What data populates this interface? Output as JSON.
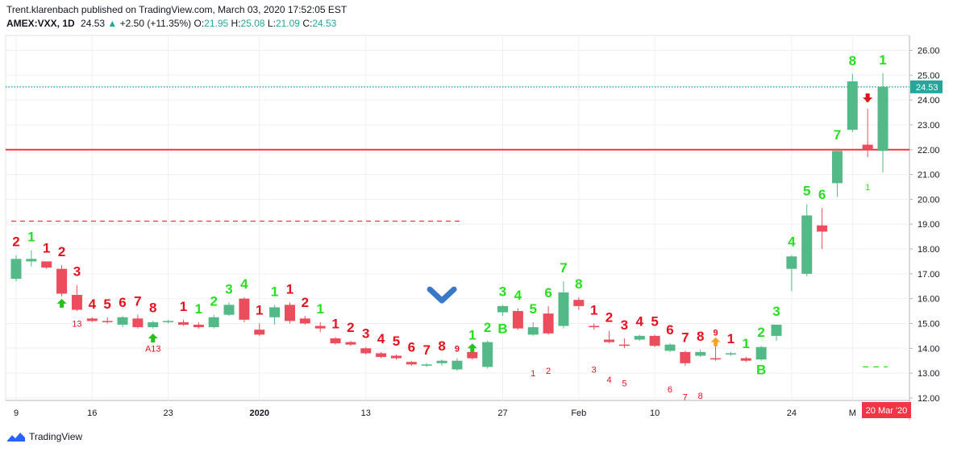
{
  "header": {
    "publisher_line": "Trent.klarenbach published on TradingView.com, March 03, 2020 17:52:05 EST",
    "symbol": "AMEX:VXX, 1D",
    "last": "24.53",
    "change": "+2.50 (+11.35%)",
    "o_label": "O:",
    "o_value": "21.95",
    "h_label": "H:",
    "h_value": "25.08",
    "l_label": "L:",
    "l_value": "21.09",
    "c_label": "C:",
    "c_value": "24.53"
  },
  "footer": {
    "brand": "TradingView"
  },
  "colors": {
    "up": "#53b987",
    "down": "#eb4d5c",
    "setup_up": "#26e01f",
    "setup_down": "#e3121f",
    "grid": "#eef0f3",
    "level": "#f23645"
  },
  "chart_data": {
    "type": "candlestick",
    "y_range": [
      11.9,
      26.6
    ],
    "y_ticks": [
      "26.00",
      "25.00",
      "24.00",
      "23.00",
      "22.00",
      "21.00",
      "20.00",
      "19.00",
      "18.00",
      "17.00",
      "16.00",
      "15.00",
      "14.00",
      "13.00",
      "12.00"
    ],
    "x_ticks": [
      {
        "i": 0,
        "label": "9"
      },
      {
        "i": 5,
        "label": "16"
      },
      {
        "i": 10,
        "label": "23"
      },
      {
        "i": 16,
        "label": "2020"
      },
      {
        "i": 23,
        "label": "13"
      },
      {
        "i": 32,
        "label": "27"
      },
      {
        "i": 37,
        "label": "Feb"
      },
      {
        "i": 42,
        "label": "10"
      },
      {
        "i": 51,
        "label": "24"
      },
      {
        "i": 55,
        "label": "M"
      }
    ],
    "last_price_label": "24.53",
    "date_label": "20 Mar '20",
    "candles": [
      {
        "o": 16.8,
        "h": 17.75,
        "l": 16.7,
        "c": 17.6
      },
      {
        "o": 17.5,
        "h": 17.95,
        "l": 17.3,
        "c": 17.6
      },
      {
        "o": 17.5,
        "h": 17.5,
        "l": 17.2,
        "c": 17.25
      },
      {
        "o": 17.2,
        "h": 17.35,
        "l": 16.1,
        "c": 16.2
      },
      {
        "o": 16.15,
        "h": 16.55,
        "l": 15.5,
        "c": 15.55
      },
      {
        "o": 15.2,
        "h": 15.25,
        "l": 15.05,
        "c": 15.1
      },
      {
        "o": 15.1,
        "h": 15.25,
        "l": 15.0,
        "c": 15.05
      },
      {
        "o": 14.95,
        "h": 15.3,
        "l": 14.85,
        "c": 15.25
      },
      {
        "o": 15.2,
        "h": 15.35,
        "l": 14.8,
        "c": 14.85
      },
      {
        "o": 14.85,
        "h": 15.1,
        "l": 14.8,
        "c": 15.05
      },
      {
        "o": 15.05,
        "h": 15.15,
        "l": 15.0,
        "c": 15.1
      },
      {
        "o": 15.05,
        "h": 15.15,
        "l": 14.9,
        "c": 14.95
      },
      {
        "o": 14.95,
        "h": 15.05,
        "l": 14.8,
        "c": 14.85
      },
      {
        "o": 14.85,
        "h": 15.35,
        "l": 14.8,
        "c": 15.25
      },
      {
        "o": 15.35,
        "h": 15.85,
        "l": 15.3,
        "c": 15.75
      },
      {
        "o": 16.0,
        "h": 16.05,
        "l": 15.05,
        "c": 15.15
      },
      {
        "o": 14.75,
        "h": 15.0,
        "l": 14.5,
        "c": 14.55
      },
      {
        "o": 15.25,
        "h": 15.75,
        "l": 14.95,
        "c": 15.65
      },
      {
        "o": 15.75,
        "h": 15.85,
        "l": 15.0,
        "c": 15.1
      },
      {
        "o": 15.2,
        "h": 15.3,
        "l": 14.95,
        "c": 15.0
      },
      {
        "o": 14.9,
        "h": 15.05,
        "l": 14.65,
        "c": 14.8
      },
      {
        "o": 14.4,
        "h": 14.45,
        "l": 14.15,
        "c": 14.2
      },
      {
        "o": 14.25,
        "h": 14.3,
        "l": 14.1,
        "c": 14.15
      },
      {
        "o": 14.0,
        "h": 14.05,
        "l": 13.75,
        "c": 13.8
      },
      {
        "o": 13.8,
        "h": 13.85,
        "l": 13.6,
        "c": 13.65
      },
      {
        "o": 13.7,
        "h": 13.75,
        "l": 13.55,
        "c": 13.6
      },
      {
        "o": 13.45,
        "h": 13.5,
        "l": 13.3,
        "c": 13.35
      },
      {
        "o": 13.3,
        "h": 13.4,
        "l": 13.25,
        "c": 13.35
      },
      {
        "o": 13.4,
        "h": 13.55,
        "l": 13.3,
        "c": 13.5
      },
      {
        "o": 13.15,
        "h": 13.6,
        "l": 13.1,
        "c": 13.5
      },
      {
        "o": 13.85,
        "h": 14.0,
        "l": 13.55,
        "c": 13.6
      },
      {
        "o": 13.25,
        "h": 14.3,
        "l": 13.2,
        "c": 14.25
      },
      {
        "o": 15.45,
        "h": 15.75,
        "l": 15.3,
        "c": 15.7
      },
      {
        "o": 15.5,
        "h": 15.6,
        "l": 14.75,
        "c": 14.8
      },
      {
        "o": 14.55,
        "h": 15.05,
        "l": 14.5,
        "c": 14.85
      },
      {
        "o": 15.4,
        "h": 15.7,
        "l": 14.55,
        "c": 14.6
      },
      {
        "o": 14.9,
        "h": 16.7,
        "l": 14.8,
        "c": 16.25
      },
      {
        "o": 15.95,
        "h": 16.05,
        "l": 15.55,
        "c": 15.7
      },
      {
        "o": 14.9,
        "h": 15.0,
        "l": 14.75,
        "c": 14.85
      },
      {
        "o": 14.35,
        "h": 14.7,
        "l": 14.2,
        "c": 14.25
      },
      {
        "o": 14.15,
        "h": 14.4,
        "l": 14.0,
        "c": 14.1
      },
      {
        "o": 14.35,
        "h": 14.55,
        "l": 14.3,
        "c": 14.5
      },
      {
        "o": 14.5,
        "h": 14.55,
        "l": 14.05,
        "c": 14.1
      },
      {
        "o": 13.9,
        "h": 14.2,
        "l": 13.85,
        "c": 14.15
      },
      {
        "o": 13.85,
        "h": 13.9,
        "l": 13.3,
        "c": 13.4
      },
      {
        "o": 13.7,
        "h": 13.95,
        "l": 13.65,
        "c": 13.85
      },
      {
        "o": 13.6,
        "h": 14.25,
        "l": 13.5,
        "c": 13.55
      },
      {
        "o": 13.75,
        "h": 13.85,
        "l": 13.7,
        "c": 13.8
      },
      {
        "o": 13.6,
        "h": 13.65,
        "l": 13.45,
        "c": 13.5
      },
      {
        "o": 13.55,
        "h": 14.1,
        "l": 13.5,
        "c": 14.05
      },
      {
        "o": 14.5,
        "h": 14.95,
        "l": 14.3,
        "c": 14.95
      },
      {
        "o": 17.2,
        "h": 17.75,
        "l": 16.3,
        "c": 17.7
      },
      {
        "o": 17.0,
        "h": 19.8,
        "l": 16.9,
        "c": 19.35
      },
      {
        "o": 18.95,
        "h": 19.65,
        "l": 18.0,
        "c": 18.7
      },
      {
        "o": 20.65,
        "h": 22.05,
        "l": 20.1,
        "c": 21.95
      },
      {
        "o": 22.8,
        "h": 25.05,
        "l": 22.7,
        "c": 24.75
      },
      {
        "o": 22.2,
        "h": 23.65,
        "l": 21.7,
        "c": 22.0
      },
      {
        "o": 21.95,
        "h": 25.08,
        "l": 21.09,
        "c": 24.53
      }
    ],
    "td_setup_labels": [
      {
        "i": 0,
        "t": "2",
        "dir": "down"
      },
      {
        "i": 1,
        "t": "1",
        "dir": "up"
      },
      {
        "i": 2,
        "t": "1",
        "dir": "down"
      },
      {
        "i": 3,
        "t": "2",
        "dir": "down"
      },
      {
        "i": 4,
        "t": "3",
        "dir": "down"
      },
      {
        "i": 5,
        "t": "4",
        "dir": "down"
      },
      {
        "i": 6,
        "t": "5",
        "dir": "down"
      },
      {
        "i": 7,
        "t": "6",
        "dir": "down"
      },
      {
        "i": 8,
        "t": "7",
        "dir": "down"
      },
      {
        "i": 9,
        "t": "8",
        "dir": "down"
      },
      {
        "i": 11,
        "t": "1",
        "dir": "down"
      },
      {
        "i": 12,
        "t": "1",
        "dir": "up"
      },
      {
        "i": 13,
        "t": "2",
        "dir": "up"
      },
      {
        "i": 14,
        "t": "3",
        "dir": "up"
      },
      {
        "i": 15,
        "t": "4",
        "dir": "up"
      },
      {
        "i": 16,
        "t": "1",
        "dir": "down"
      },
      {
        "i": 17,
        "t": "1",
        "dir": "up"
      },
      {
        "i": 18,
        "t": "1",
        "dir": "down"
      },
      {
        "i": 19,
        "t": "2",
        "dir": "down"
      },
      {
        "i": 20,
        "t": "1",
        "dir": "up"
      },
      {
        "i": 21,
        "t": "1",
        "dir": "down"
      },
      {
        "i": 22,
        "t": "2",
        "dir": "down"
      },
      {
        "i": 23,
        "t": "3",
        "dir": "down"
      },
      {
        "i": 24,
        "t": "4",
        "dir": "down"
      },
      {
        "i": 25,
        "t": "5",
        "dir": "down"
      },
      {
        "i": 26,
        "t": "6",
        "dir": "down"
      },
      {
        "i": 27,
        "t": "7",
        "dir": "down"
      },
      {
        "i": 28,
        "t": "8",
        "dir": "down"
      },
      {
        "i": 29,
        "t": "9",
        "dir": "down",
        "small": true
      },
      {
        "i": 30,
        "t": "1",
        "dir": "up"
      },
      {
        "i": 31,
        "t": "2",
        "dir": "up"
      },
      {
        "i": 32,
        "t": "3",
        "dir": "up"
      },
      {
        "i": 33,
        "t": "4",
        "dir": "up"
      },
      {
        "i": 34,
        "t": "5",
        "dir": "up"
      },
      {
        "i": 35,
        "t": "6",
        "dir": "up"
      },
      {
        "i": 36,
        "t": "7",
        "dir": "up"
      },
      {
        "i": 37,
        "t": "8",
        "dir": "up"
      },
      {
        "i": 38,
        "t": "1",
        "dir": "down"
      },
      {
        "i": 39,
        "t": "2",
        "dir": "down"
      },
      {
        "i": 40,
        "t": "3",
        "dir": "down"
      },
      {
        "i": 41,
        "t": "4",
        "dir": "down"
      },
      {
        "i": 42,
        "t": "5",
        "dir": "down"
      },
      {
        "i": 43,
        "t": "6",
        "dir": "down"
      },
      {
        "i": 44,
        "t": "7",
        "dir": "down"
      },
      {
        "i": 45,
        "t": "8",
        "dir": "down"
      },
      {
        "i": 46,
        "t": "9",
        "dir": "down",
        "small": true
      },
      {
        "i": 47,
        "t": "1",
        "dir": "down"
      },
      {
        "i": 48,
        "t": "1",
        "dir": "up"
      },
      {
        "i": 49,
        "t": "2",
        "dir": "up"
      },
      {
        "i": 50,
        "t": "3",
        "dir": "up"
      },
      {
        "i": 51,
        "t": "4",
        "dir": "up"
      },
      {
        "i": 52,
        "t": "5",
        "dir": "up"
      },
      {
        "i": 53,
        "t": "6",
        "dir": "up"
      },
      {
        "i": 54,
        "t": "7",
        "dir": "up"
      },
      {
        "i": 55,
        "t": "8",
        "dir": "up"
      },
      {
        "i": 56,
        "t": "9",
        "dir": "up",
        "small": true
      },
      {
        "i": 57,
        "t": "1",
        "dir": "up"
      }
    ],
    "td_countdown_labels": [
      {
        "i": 4,
        "t": "13",
        "price": 15.0
      },
      {
        "i": 9,
        "t": "A13",
        "price": 14.0
      },
      {
        "i": 34,
        "t": "1",
        "price": 13.0
      },
      {
        "i": 35,
        "t": "2",
        "price": 13.1
      },
      {
        "i": 38,
        "t": "3",
        "price": 13.15
      },
      {
        "i": 39,
        "t": "4",
        "price": 12.75
      },
      {
        "i": 40,
        "t": "5",
        "price": 12.6
      },
      {
        "i": 43,
        "t": "6",
        "price": 12.35
      },
      {
        "i": 44,
        "t": "7",
        "price": 12.05
      },
      {
        "i": 45,
        "t": "8",
        "price": 12.1
      },
      {
        "i": 56,
        "t": "1",
        "price": 20.5
      }
    ],
    "td_perfection_letters": [
      {
        "i": 32,
        "t": "B",
        "price": 14.8
      },
      {
        "i": 49,
        "t": "B",
        "price": 13.15
      }
    ],
    "levels": [
      {
        "price": 22.0,
        "style": "solid",
        "color": "#f23645"
      },
      {
        "price": 19.12,
        "style": "dashed",
        "color": "#f23645",
        "from_i": 0,
        "to_i": 29
      },
      {
        "price": 24.53,
        "style": "dotted",
        "color": "#26a69a"
      }
    ],
    "stop_dashes": {
      "price": 13.25,
      "from_i": 56,
      "to_i": 57
    },
    "arrows": [
      {
        "i": 3,
        "kind": "buy",
        "price": 15.8
      },
      {
        "i": 9,
        "kind": "buy",
        "price": 14.4
      },
      {
        "i": 30,
        "kind": "buy",
        "price": 14.0
      },
      {
        "i": 46,
        "kind": "orange",
        "price": 14.25
      },
      {
        "i": 56,
        "kind": "sell",
        "price": 24.1
      },
      {
        "i": 28,
        "kind": "big_down",
        "price": 16.05
      }
    ]
  }
}
